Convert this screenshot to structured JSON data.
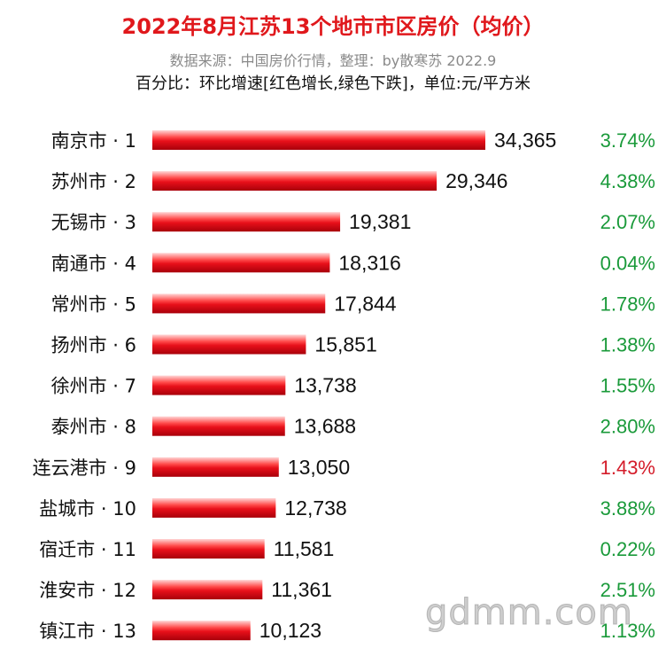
{
  "chart_data": {
    "type": "bar",
    "orientation": "horizontal",
    "title": "2022年8月江苏13个地市市区房价（均价）",
    "subtitle": "数据来源：中国房价行情，整理：by散寒苏 2022.9",
    "note": "百分比：环比增速[红色增长,绿色下跌]，单位:元/平方米",
    "categories": [
      "南京市 · 1",
      "苏州市 · 2",
      "无锡市 · 3",
      "南通市 · 4",
      "常州市 · 5",
      "扬州市 · 6",
      "徐州市 · 7",
      "泰州市 · 8",
      "连云港市 · 9",
      "盐城市 · 10",
      "宿迁市 · 11",
      "淮安市 · 12",
      "镇江市 · 13"
    ],
    "values": [
      34365,
      29346,
      19381,
      18316,
      17844,
      15851,
      13738,
      13688,
      13050,
      12738,
      11581,
      11361,
      10123
    ],
    "value_labels": [
      "34,365",
      "29,346",
      "19,381",
      "18,316",
      "17,844",
      "15,851",
      "13,738",
      "13,688",
      "13,050",
      "12,738",
      "11,581",
      "11,361",
      "10,123"
    ],
    "pct_change": [
      "3.74%",
      "4.38%",
      "2.07%",
      "0.04%",
      "1.78%",
      "1.38%",
      "1.55%",
      "2.80%",
      "1.43%",
      "3.88%",
      "0.22%",
      "2.51%",
      "1.13%"
    ],
    "pct_color": [
      "#1a9a3a",
      "#1a9a3a",
      "#1a9a3a",
      "#1a9a3a",
      "#1a9a3a",
      "#1a9a3a",
      "#1a9a3a",
      "#1a9a3a",
      "#d41c2a",
      "#1a9a3a",
      "#1a9a3a",
      "#1a9a3a",
      "#1a9a3a"
    ],
    "xlim": [
      0,
      34365
    ],
    "bar_color": "#e8101a"
  },
  "watermark": "gdmm.com"
}
